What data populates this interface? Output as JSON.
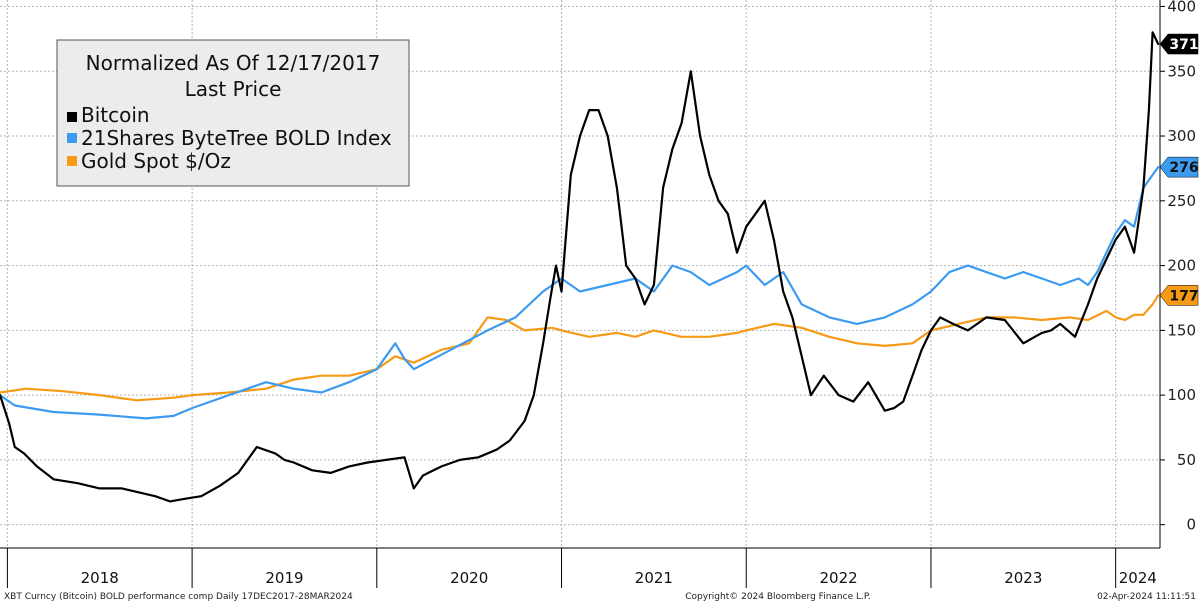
{
  "chart_data": {
    "type": "line",
    "legend": {
      "title_line1": "Normalized As Of 12/17/2017",
      "title_line2": "Last Price",
      "placement": "top-left"
    },
    "y_axis": {
      "min": -18,
      "max": 405,
      "ticks": [
        0,
        50,
        100,
        150,
        200,
        250,
        300,
        350,
        400
      ],
      "side": "right"
    },
    "x_axis": {
      "start": 2017.96,
      "end": 2024.24,
      "year_labels": [
        "2018",
        "2019",
        "2020",
        "2021",
        "2022",
        "2023",
        "2024"
      ],
      "year_boundaries": [
        2018.0,
        2019.0,
        2020.0,
        2021.0,
        2022.0,
        2023.0,
        2024.0
      ]
    },
    "grid": true,
    "series": [
      {
        "name": "Bitcoin",
        "color": "#000000",
        "last_value": "371",
        "x": [
          2017.96,
          2018.01,
          2018.04,
          2018.09,
          2018.16,
          2018.25,
          2018.38,
          2018.5,
          2018.62,
          2018.71,
          2018.8,
          2018.88,
          2018.96,
          2019.05,
          2019.15,
          2019.25,
          2019.35,
          2019.45,
          2019.5,
          2019.55,
          2019.65,
          2019.75,
          2019.85,
          2019.95,
          2020.05,
          2020.15,
          2020.2,
          2020.25,
          2020.35,
          2020.45,
          2020.55,
          2020.65,
          2020.72,
          2020.8,
          2020.85,
          2020.9,
          2020.94,
          2020.97,
          2021.0,
          2021.05,
          2021.1,
          2021.15,
          2021.2,
          2021.25,
          2021.3,
          2021.35,
          2021.4,
          2021.45,
          2021.5,
          2021.55,
          2021.6,
          2021.65,
          2021.7,
          2021.75,
          2021.8,
          2021.85,
          2021.9,
          2021.95,
          2022.0,
          2022.05,
          2022.1,
          2022.15,
          2022.2,
          2022.25,
          2022.3,
          2022.35,
          2022.42,
          2022.5,
          2022.58,
          2022.66,
          2022.75,
          2022.8,
          2022.85,
          2022.9,
          2022.95,
          2023.0,
          2023.05,
          2023.12,
          2023.2,
          2023.3,
          2023.4,
          2023.5,
          2023.6,
          2023.65,
          2023.7,
          2023.78,
          2023.85,
          2023.9,
          2023.95,
          2024.0,
          2024.05,
          2024.1,
          2024.15,
          2024.18,
          2024.2,
          2024.23
        ],
        "values": [
          100,
          78,
          60,
          55,
          45,
          35,
          32,
          28,
          28,
          25,
          22,
          18,
          20,
          22,
          30,
          40,
          60,
          55,
          50,
          48,
          42,
          40,
          45,
          48,
          50,
          52,
          28,
          38,
          45,
          50,
          52,
          58,
          65,
          80,
          100,
          140,
          175,
          200,
          180,
          270,
          300,
          320,
          320,
          300,
          260,
          200,
          190,
          170,
          185,
          260,
          290,
          310,
          350,
          300,
          270,
          250,
          240,
          210,
          230,
          240,
          250,
          220,
          180,
          160,
          130,
          100,
          115,
          100,
          95,
          110,
          88,
          90,
          95,
          115,
          135,
          150,
          160,
          155,
          150,
          160,
          158,
          140,
          148,
          150,
          155,
          145,
          170,
          190,
          205,
          220,
          230,
          210,
          260,
          320,
          380,
          371
        ]
      },
      {
        "name": "21Shares ByteTree BOLD Index",
        "color": "#3c9bf0",
        "last_value": "276",
        "x": [
          2017.96,
          2018.04,
          2018.25,
          2018.5,
          2018.75,
          2018.9,
          2019.0,
          2019.2,
          2019.4,
          2019.55,
          2019.7,
          2019.85,
          2020.0,
          2020.1,
          2020.15,
          2020.2,
          2020.4,
          2020.6,
          2020.75,
          2020.9,
          2021.0,
          2021.1,
          2021.25,
          2021.4,
          2021.5,
          2021.6,
          2021.7,
          2021.8,
          2021.95,
          2022.0,
          2022.1,
          2022.2,
          2022.3,
          2022.45,
          2022.6,
          2022.75,
          2022.9,
          2023.0,
          2023.1,
          2023.2,
          2023.3,
          2023.4,
          2023.5,
          2023.6,
          2023.7,
          2023.8,
          2023.85,
          2023.9,
          2023.95,
          2024.0,
          2024.05,
          2024.1,
          2024.15,
          2024.2,
          2024.23
        ],
        "values": [
          100,
          92,
          87,
          85,
          82,
          84,
          90,
          100,
          110,
          105,
          102,
          110,
          120,
          140,
          128,
          120,
          135,
          150,
          160,
          180,
          190,
          180,
          185,
          190,
          180,
          200,
          195,
          185,
          195,
          200,
          185,
          195,
          170,
          160,
          155,
          160,
          170,
          180,
          195,
          200,
          195,
          190,
          195,
          190,
          185,
          190,
          185,
          195,
          210,
          225,
          235,
          230,
          260,
          270,
          276
        ]
      },
      {
        "name": "Gold Spot $/Oz",
        "color": "#f79a16",
        "last_value": "177",
        "x": [
          2017.96,
          2018.1,
          2018.3,
          2018.5,
          2018.7,
          2018.9,
          2019.0,
          2019.2,
          2019.4,
          2019.55,
          2019.7,
          2019.85,
          2020.0,
          2020.1,
          2020.2,
          2020.35,
          2020.5,
          2020.6,
          2020.7,
          2020.8,
          2020.95,
          2021.0,
          2021.15,
          2021.3,
          2021.4,
          2021.5,
          2021.65,
          2021.8,
          2021.95,
          2022.0,
          2022.15,
          2022.3,
          2022.45,
          2022.6,
          2022.75,
          2022.9,
          2023.0,
          2023.15,
          2023.3,
          2023.45,
          2023.6,
          2023.75,
          2023.85,
          2023.95,
          2024.0,
          2024.05,
          2024.1,
          2024.15,
          2024.2,
          2024.23
        ],
        "values": [
          102,
          105,
          103,
          100,
          96,
          98,
          100,
          102,
          105,
          112,
          115,
          115,
          120,
          130,
          125,
          135,
          140,
          160,
          158,
          150,
          152,
          150,
          145,
          148,
          145,
          150,
          145,
          145,
          148,
          150,
          155,
          152,
          145,
          140,
          138,
          140,
          150,
          155,
          160,
          160,
          158,
          160,
          158,
          165,
          160,
          158,
          162,
          162,
          170,
          177
        ]
      }
    ]
  },
  "footer": {
    "left": "XBT Curncy (Bitcoin) BOLD performance comp  Daily 17DEC2017-28MAR2024",
    "center": "Copyright© 2024 Bloomberg Finance L.P.",
    "right": "02-Apr-2024 11:11:51"
  }
}
